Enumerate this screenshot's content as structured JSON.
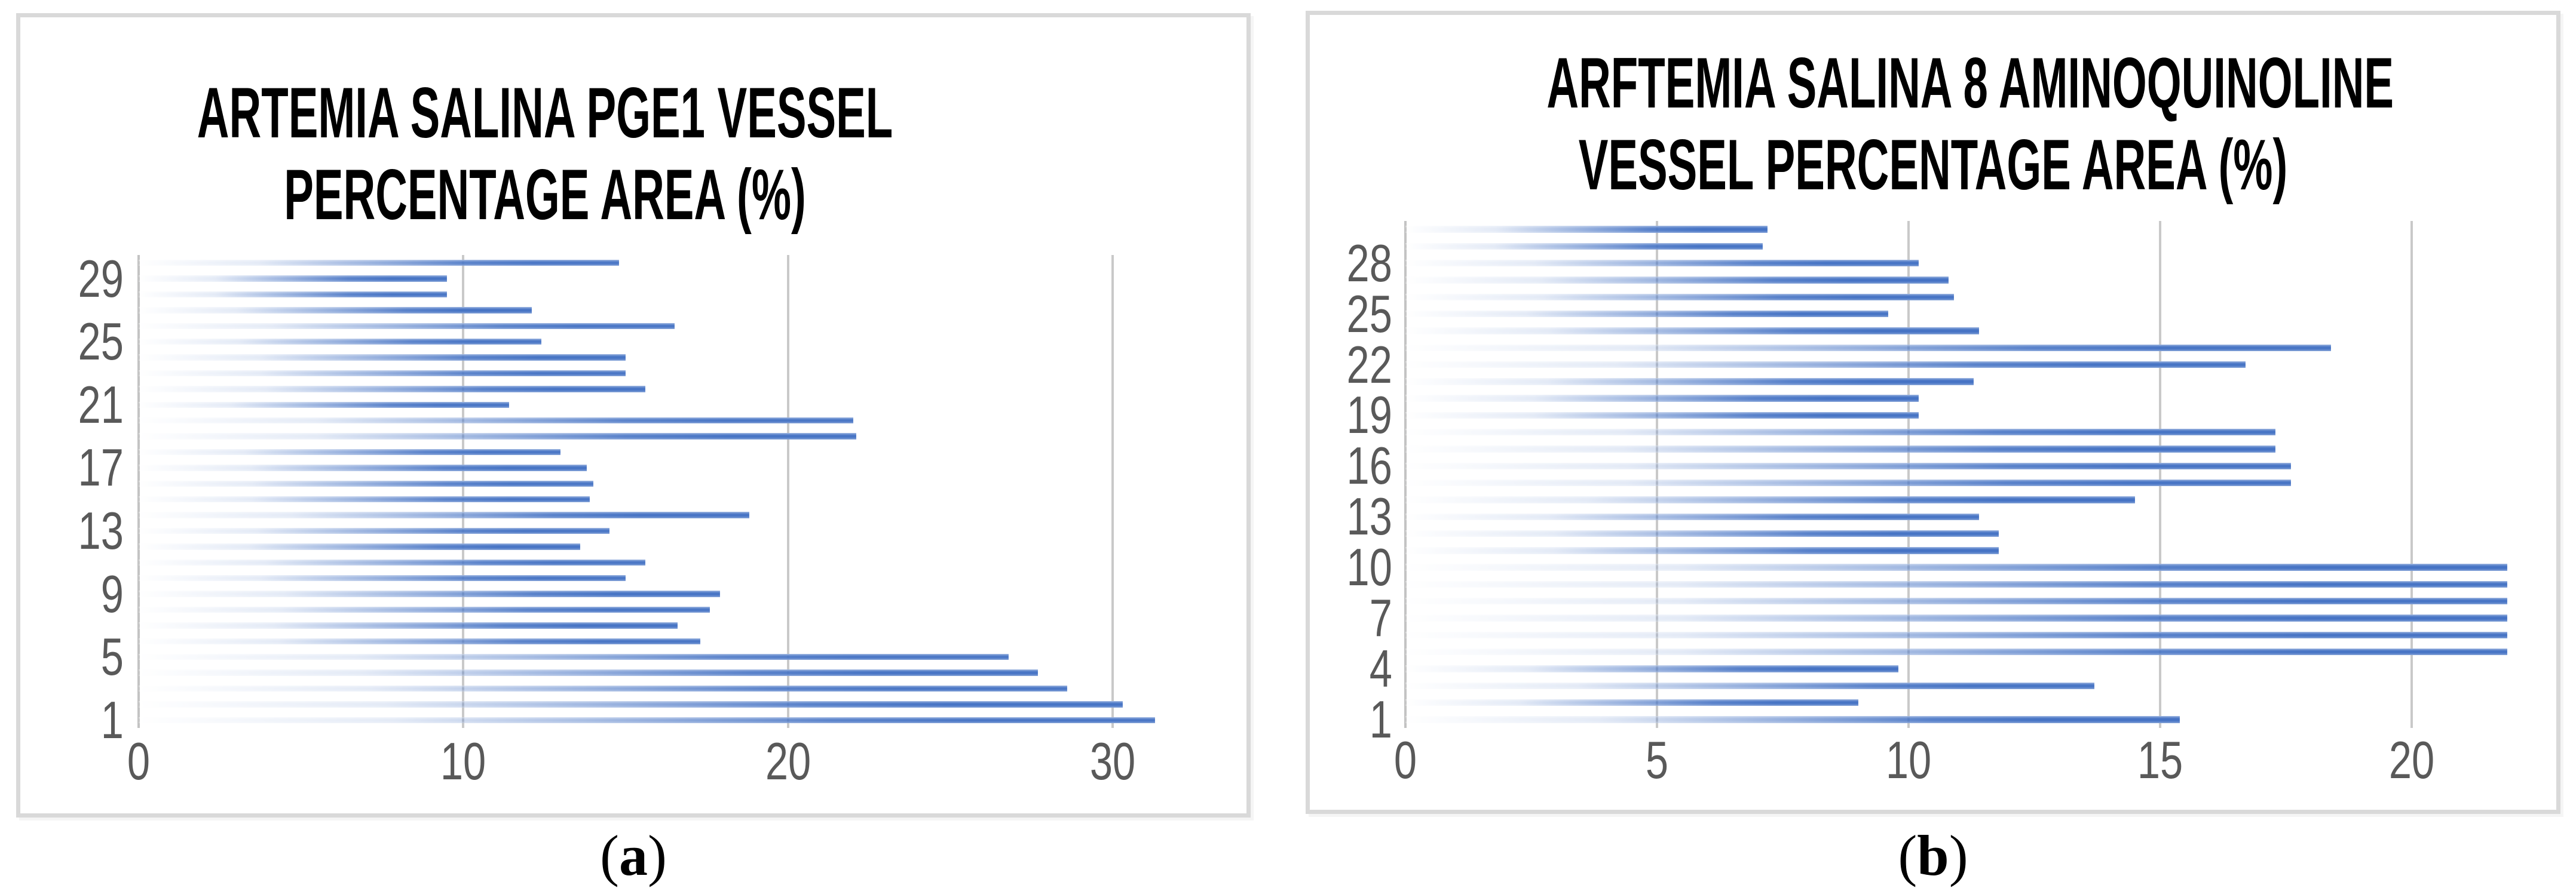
{
  "figure": {
    "colors": {
      "bar_blue": "#4472C4",
      "gridline": "#c9c9c9",
      "axis_line": "#c3c3c3",
      "tick_label": "#595959",
      "title_text": "#000000",
      "panel_border": "#d9d9d9"
    },
    "panels": [
      {
        "id": "a",
        "title_lines": [
          "ARTEMIA SALINA PGE1 VESSEL",
          "PERCENTAGE AREA (%)"
        ],
        "caption": {
          "open": "(",
          "letter": "a",
          "close": ")"
        }
      },
      {
        "id": "b",
        "title_lines": [
          "ARFTEMIA SALINA 8 AMINOQUINOLINE",
          "VESSEL PERCENTAGE AREA (%)"
        ],
        "caption": {
          "open": "(",
          "letter": "b",
          "close": ")"
        }
      }
    ]
  },
  "chart_data": [
    {
      "type": "bar",
      "orientation": "horizontal",
      "title": "ARTEMIA SALINA PGE1 VESSEL PERCENTAGE AREA (%)",
      "xlabel": "",
      "ylabel": "",
      "categories": [
        1,
        2,
        3,
        4,
        5,
        6,
        7,
        8,
        9,
        10,
        11,
        12,
        13,
        14,
        15,
        16,
        17,
        18,
        19,
        20,
        21,
        22,
        23,
        24,
        25,
        26,
        27,
        28,
        29,
        30
      ],
      "values": [
        31.3,
        30.3,
        28.6,
        27.7,
        26.8,
        17.3,
        16.6,
        17.6,
        17.9,
        15.0,
        15.6,
        13.6,
        14.5,
        18.8,
        13.9,
        14.0,
        13.8,
        13.0,
        22.1,
        22.0,
        11.4,
        15.6,
        15.0,
        15.0,
        12.4,
        16.5,
        12.1,
        9.5,
        9.5,
        14.8
      ],
      "x_ticks": [
        0,
        10,
        20,
        30
      ],
      "xlim": [
        0,
        32
      ],
      "y_tick_labels": [
        29,
        25,
        21,
        17,
        13,
        9,
        5,
        1
      ],
      "grid": "vertical-major-on",
      "legend": "none",
      "bar_fill": "white-to-blue horizontal gradient"
    },
    {
      "type": "bar",
      "orientation": "horizontal",
      "title": "ARFTEMIA SALINA 8 AMINOQUINOLINE VESSEL PERCENTAGE AREA (%)",
      "xlabel": "",
      "ylabel": "",
      "categories": [
        1,
        2,
        3,
        4,
        5,
        6,
        7,
        8,
        9,
        10,
        11,
        12,
        13,
        14,
        15,
        16,
        17,
        18,
        19,
        20,
        21,
        22,
        23,
        24,
        25,
        26,
        27,
        28,
        29,
        30
      ],
      "values": [
        15.4,
        9.0,
        13.7,
        9.8,
        21.9,
        21.9,
        21.9,
        21.9,
        21.9,
        21.9,
        11.8,
        11.8,
        11.4,
        14.5,
        17.6,
        17.6,
        17.3,
        17.3,
        10.2,
        10.2,
        11.3,
        16.7,
        18.4,
        11.4,
        9.6,
        10.9,
        10.8,
        10.2,
        7.1,
        7.2
      ],
      "x_ticks": [
        0,
        5,
        10,
        15,
        20
      ],
      "xlim": [
        0,
        22
      ],
      "y_tick_labels": [
        28,
        25,
        22,
        19,
        16,
        13,
        10,
        7,
        4,
        1
      ],
      "grid": "vertical-major-on",
      "legend": "none",
      "bar_fill": "white-to-blue horizontal gradient"
    }
  ]
}
